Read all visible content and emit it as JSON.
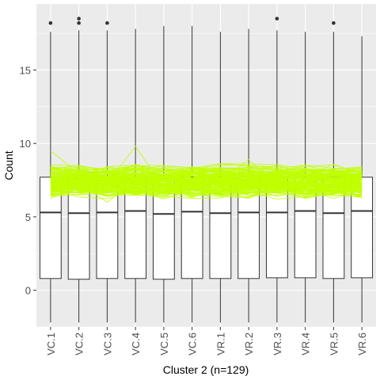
{
  "chart_data": {
    "type": "boxplot",
    "title": "",
    "xlabel": "Cluster 2 (n=129)",
    "ylabel": "Count",
    "ylim": [
      -2.5,
      19.5
    ],
    "yticks": [
      0,
      5,
      10,
      15
    ],
    "grid": true,
    "legend": "none",
    "categories": [
      "VC.1",
      "VC.2",
      "VC.3",
      "VC.4",
      "VC.5",
      "VC.6",
      "VR.1",
      "VR.2",
      "VR.3",
      "VR.4",
      "VR.5",
      "VR.6"
    ],
    "boxes": [
      {
        "whisker_low": -2.2,
        "q1": 0.8,
        "median": 5.3,
        "q3": 7.7,
        "whisker_high": 17.6,
        "outliers": [
          18.2
        ]
      },
      {
        "whisker_low": -2.2,
        "q1": 0.75,
        "median": 5.25,
        "q3": 7.7,
        "whisker_high": 17.7,
        "outliers": [
          18.2,
          18.5
        ]
      },
      {
        "whisker_low": -2.2,
        "q1": 0.8,
        "median": 5.3,
        "q3": 7.7,
        "whisker_high": 17.7,
        "outliers": [
          18.2
        ]
      },
      {
        "whisker_low": -2.2,
        "q1": 0.8,
        "median": 5.4,
        "q3": 7.7,
        "whisker_high": 17.8,
        "outliers": []
      },
      {
        "whisker_low": -2.2,
        "q1": 0.75,
        "median": 5.2,
        "q3": 7.7,
        "whisker_high": 18.0,
        "outliers": []
      },
      {
        "whisker_low": -2.2,
        "q1": 0.8,
        "median": 5.35,
        "q3": 7.7,
        "whisker_high": 18.0,
        "outliers": []
      },
      {
        "whisker_low": -2.2,
        "q1": 0.8,
        "median": 5.25,
        "q3": 7.7,
        "whisker_high": 17.6,
        "outliers": []
      },
      {
        "whisker_low": -2.2,
        "q1": 0.8,
        "median": 5.3,
        "q3": 7.7,
        "whisker_high": 17.8,
        "outliers": []
      },
      {
        "whisker_low": -2.2,
        "q1": 0.85,
        "median": 5.3,
        "q3": 7.7,
        "whisker_high": 17.7,
        "outliers": [
          18.5
        ]
      },
      {
        "whisker_low": -2.2,
        "q1": 0.85,
        "median": 5.4,
        "q3": 7.7,
        "whisker_high": 17.6,
        "outliers": []
      },
      {
        "whisker_low": -2.2,
        "q1": 0.8,
        "median": 5.25,
        "q3": 7.7,
        "whisker_high": 17.6,
        "outliers": [
          18.2
        ]
      },
      {
        "whisker_low": -2.2,
        "q1": 0.85,
        "median": 5.4,
        "q3": 7.7,
        "whisker_high": 17.3,
        "outliers": []
      }
    ],
    "overlay": {
      "type": "line",
      "series_count": 129,
      "value_range": [
        6.0,
        9.8
      ],
      "typical_range": [
        6.6,
        8.2
      ],
      "color": "#bfff00"
    },
    "colors": {
      "panel": "#ebebeb",
      "grid_major": "#ffffff",
      "box_fill": "#ffffff",
      "box_line": "#333333",
      "line": "#bfff00"
    }
  }
}
